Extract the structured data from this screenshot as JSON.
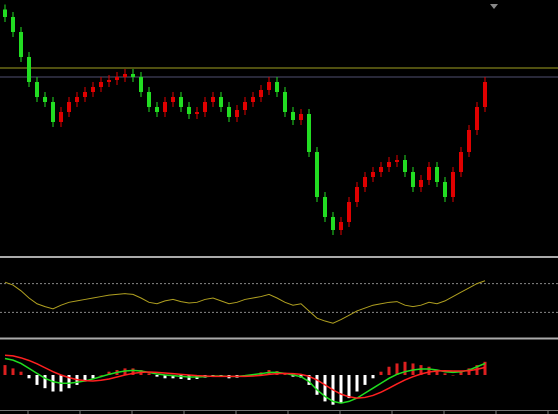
{
  "chart_data": [
    {
      "type": "candlestick",
      "open": [
        97,
        94,
        88,
        78,
        68,
        62,
        60,
        52,
        56,
        60,
        62,
        64,
        66,
        68,
        68.8,
        70,
        71.2,
        70,
        64,
        58,
        56,
        60,
        62,
        58,
        55.2,
        56,
        60,
        62,
        58,
        54,
        56.8,
        60,
        62,
        64.8,
        68,
        64,
        56,
        52.8,
        55.2,
        40,
        22,
        14,
        8.8,
        12,
        20,
        26,
        30,
        32,
        34,
        36,
        36.8,
        32,
        26,
        28.8,
        34,
        28,
        22,
        32,
        40,
        48.8,
        58
      ],
      "high": [
        99,
        96,
        90,
        80,
        70,
        64,
        62,
        58,
        62,
        64,
        66,
        68,
        70,
        70.8,
        72,
        73.2,
        73.2,
        72,
        66,
        60,
        62,
        64,
        64,
        60,
        58,
        62,
        64,
        64,
        60,
        58.8,
        62,
        64,
        66.8,
        70,
        70,
        66,
        58,
        57.2,
        57.2,
        42,
        24,
        16,
        14,
        22,
        28,
        32,
        34,
        36,
        38,
        38.8,
        38.8,
        34,
        30.8,
        36,
        36,
        30,
        34,
        42,
        50.8,
        60,
        70
      ],
      "low": [
        92,
        86,
        76,
        66,
        60,
        58,
        50,
        50,
        54,
        58,
        60,
        62,
        64,
        66,
        66.8,
        68,
        68,
        62,
        56,
        54,
        54,
        58,
        56,
        53.2,
        53.2,
        54,
        58,
        56,
        52,
        52,
        54.8,
        58,
        60,
        62.8,
        62,
        54,
        50.8,
        50.8,
        38,
        20,
        12,
        6.8,
        6.8,
        10,
        18,
        24,
        28,
        30,
        32,
        34,
        30,
        24,
        24,
        26.8,
        26,
        20,
        20,
        30,
        38,
        46.8,
        56
      ],
      "close": [
        94,
        88,
        78,
        68,
        62,
        60,
        52,
        56,
        60,
        62,
        64,
        66,
        68,
        68.8,
        70,
        71.2,
        70,
        64,
        58,
        56,
        60,
        62,
        58,
        55.2,
        56,
        60,
        62,
        58,
        54,
        56.8,
        60,
        62,
        64.8,
        68,
        64,
        56,
        52.8,
        55.2,
        40,
        22,
        14,
        8.8,
        12,
        20,
        26,
        30,
        32,
        34,
        36,
        36.8,
        32,
        26,
        28.8,
        34,
        28,
        22,
        32,
        40,
        48.8,
        58,
        68
      ],
      "up_color": "#e00000",
      "down_color": "#22dd22",
      "ylim": [
        0,
        100
      ],
      "levels": [
        {
          "value": 73.6,
          "color": "#a0a020"
        },
        {
          "value": 70,
          "color": "#505070"
        }
      ]
    },
    {
      "type": "line",
      "values": [
        72,
        68,
        60,
        50,
        42,
        38,
        35,
        40,
        44,
        46,
        48,
        50,
        52,
        54,
        55,
        56,
        55,
        50,
        44,
        42,
        46,
        48,
        45,
        43,
        44,
        48,
        50,
        46,
        42,
        44,
        48,
        50,
        52,
        55,
        50,
        44,
        40,
        42,
        32,
        22,
        18,
        15,
        20,
        26,
        32,
        36,
        40,
        42,
        44,
        45,
        40,
        38,
        40,
        44,
        42,
        46,
        52,
        58,
        64,
        70,
        74
      ],
      "color": "#b0a020",
      "ylim": [
        0,
        100
      ],
      "levels": [
        {
          "value": 70,
          "color": "#888888"
        },
        {
          "value": 30,
          "color": "#888888"
        }
      ]
    },
    {
      "type": "macd",
      "values": [
        0.3,
        0.2,
        0.1,
        -0.1,
        -0.3,
        -0.4,
        -0.5,
        -0.5,
        -0.4,
        -0.3,
        -0.2,
        -0.1,
        0.0,
        0.1,
        0.15,
        0.2,
        0.2,
        0.15,
        0.05,
        -0.05,
        -0.1,
        -0.1,
        -0.12,
        -0.15,
        -0.12,
        -0.08,
        -0.05,
        -0.06,
        -0.1,
        -0.08,
        -0.03,
        0.02,
        0.08,
        0.15,
        0.12,
        0.05,
        -0.05,
        -0.08,
        -0.3,
        -0.6,
        -0.8,
        -0.9,
        -0.85,
        -0.7,
        -0.5,
        -0.3,
        -0.1,
        0.1,
        0.25,
        0.35,
        0.4,
        0.35,
        0.3,
        0.25,
        0.15,
        0.05,
        0.0,
        0.1,
        0.2,
        0.3,
        0.4
      ],
      "pos_color": "#dd2020",
      "neg_color": "#ffffff",
      "series": [
        {
          "color": "#20dd20",
          "values": [
            0.5,
            0.45,
            0.35,
            0.2,
            0.05,
            -0.1,
            -0.2,
            -0.25,
            -0.25,
            -0.22,
            -0.18,
            -0.12,
            -0.05,
            0.02,
            0.08,
            0.12,
            0.14,
            0.12,
            0.08,
            0.03,
            0,
            -0.02,
            -0.04,
            -0.06,
            -0.06,
            -0.05,
            -0.03,
            -0.03,
            -0.04,
            -0.04,
            -0.02,
            0.01,
            0.04,
            0.08,
            0.08,
            0.05,
            0,
            -0.05,
            -0.2,
            -0.45,
            -0.65,
            -0.8,
            -0.85,
            -0.8,
            -0.7,
            -0.55,
            -0.4,
            -0.25,
            -0.1,
            0.02,
            0.1,
            0.15,
            0.18,
            0.18,
            0.15,
            0.1,
            0.08,
            0.1,
            0.15,
            0.25,
            0.35
          ]
        },
        {
          "color": "#ff2020",
          "values": [
            0.6,
            0.58,
            0.52,
            0.44,
            0.34,
            0.22,
            0.1,
            0,
            -0.08,
            -0.14,
            -0.17,
            -0.18,
            -0.16,
            -0.12,
            -0.06,
            0,
            0.05,
            0.08,
            0.09,
            0.08,
            0.06,
            0.04,
            0.02,
            0,
            -0.02,
            -0.03,
            -0.04,
            -0.04,
            -0.04,
            -0.04,
            -0.04,
            -0.03,
            -0.01,
            0.02,
            0.04,
            0.05,
            0.04,
            0.02,
            -0.04,
            -0.15,
            -0.3,
            -0.45,
            -0.58,
            -0.66,
            -0.7,
            -0.68,
            -0.62,
            -0.52,
            -0.4,
            -0.27,
            -0.15,
            -0.05,
            0.03,
            0.09,
            0.12,
            0.13,
            0.12,
            0.12,
            0.13,
            0.17,
            0.23
          ]
        }
      ],
      "ylim": [
        -1,
        1
      ]
    }
  ]
}
